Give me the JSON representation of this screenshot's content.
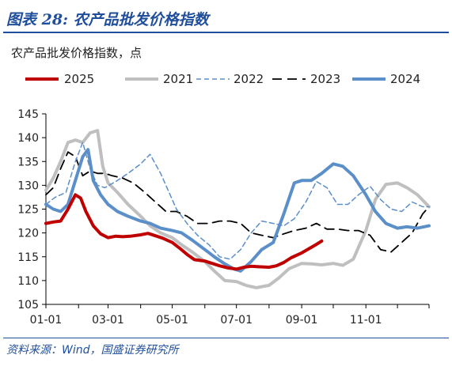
{
  "figure": {
    "title": "图表 28:  农产品批发价格指数",
    "subtitle": "农产品批发价格指数，点",
    "source": "资料来源：Wind，国盛证券研究所"
  },
  "colors": {
    "brand": "#1f4e9c"
  },
  "chart_data": {
    "type": "line",
    "title": "农产品批发价格指数，点",
    "xlabel": "",
    "ylabel": "",
    "ylim": [
      105,
      145
    ],
    "xlim": [
      "01-01",
      "12-31"
    ],
    "x_ticks": [
      "01-01",
      "03-01",
      "05-01",
      "07-01",
      "09-01",
      "11-01"
    ],
    "y_ticks": [
      105,
      110,
      115,
      120,
      125,
      130,
      135,
      140,
      145
    ],
    "grid": false,
    "legend_position": "top",
    "series": [
      {
        "name": "2025",
        "color": "#c00000",
        "style": "solid",
        "width": 4,
        "x": [
          "01-01",
          "01-08",
          "01-15",
          "01-22",
          "01-29",
          "02-03",
          "02-08",
          "02-15",
          "02-22",
          "03-01",
          "03-08",
          "03-15",
          "03-22",
          "04-01",
          "04-08",
          "04-15",
          "04-22",
          "05-01",
          "05-08",
          "05-15",
          "05-22",
          "06-01",
          "06-08",
          "06-15",
          "06-22",
          "07-01",
          "07-08",
          "07-15",
          "07-22",
          "08-01",
          "08-08",
          "08-15",
          "08-22",
          "09-01",
          "09-08",
          "09-15",
          "09-20"
        ],
        "y": [
          122.0,
          122.3,
          122.5,
          125.0,
          128.0,
          127.3,
          124.5,
          121.5,
          119.8,
          119.0,
          119.3,
          119.2,
          119.3,
          119.6,
          119.9,
          119.4,
          118.9,
          118.0,
          116.8,
          115.5,
          114.4,
          114.1,
          113.6,
          113.1,
          112.7,
          112.4,
          112.8,
          113.0,
          112.9,
          112.8,
          113.1,
          113.8,
          114.8,
          115.8,
          116.7,
          117.6,
          118.3
        ]
      },
      {
        "name": "2021",
        "color": "#bfbfbf",
        "style": "solid",
        "width": 4,
        "x": [
          "01-01",
          "01-08",
          "01-15",
          "01-22",
          "01-29",
          "02-05",
          "02-12",
          "02-19",
          "02-24",
          "03-01",
          "03-10",
          "03-20",
          "04-01",
          "04-10",
          "04-20",
          "05-01",
          "05-10",
          "05-20",
          "06-01",
          "06-10",
          "06-20",
          "07-01",
          "07-10",
          "07-20",
          "08-01",
          "08-10",
          "08-20",
          "09-01",
          "09-10",
          "09-20",
          "10-01",
          "10-10",
          "10-20",
          "11-01",
          "11-10",
          "11-20",
          "12-01",
          "12-10",
          "12-20",
          "12-31"
        ],
        "y": [
          129.0,
          131.5,
          135.0,
          139.0,
          139.5,
          139.0,
          141.0,
          141.5,
          134.0,
          130.5,
          128.5,
          126.0,
          123.5,
          121.5,
          120.0,
          119.0,
          117.5,
          116.0,
          114.0,
          112.0,
          110.0,
          109.8,
          109.0,
          108.5,
          109.0,
          110.5,
          112.5,
          113.6,
          113.5,
          113.3,
          113.6,
          113.2,
          114.5,
          120.5,
          127.0,
          130.2,
          130.5,
          129.5,
          128.0,
          125.5
        ]
      },
      {
        "name": "2022",
        "color": "#5b8fc9",
        "style": "dashed",
        "width": 1.5,
        "x": [
          "01-01",
          "01-10",
          "01-20",
          "01-29",
          "02-05",
          "02-12",
          "02-19",
          "02-26",
          "03-10",
          "03-20",
          "04-01",
          "04-10",
          "04-20",
          "04-28",
          "05-05",
          "05-15",
          "05-25",
          "06-05",
          "06-15",
          "06-25",
          "07-05",
          "07-15",
          "07-25",
          "08-05",
          "08-15",
          "08-25",
          "09-05",
          "09-15",
          "09-25",
          "10-05",
          "10-15",
          "10-25",
          "11-05",
          "11-15",
          "11-25",
          "12-05",
          "12-15",
          "12-25",
          "12-31"
        ],
        "y": [
          126.0,
          127.5,
          128.5,
          135.0,
          139.0,
          133.5,
          130.0,
          129.5,
          131.0,
          132.5,
          134.5,
          136.5,
          132.5,
          128.5,
          125.0,
          122.0,
          119.5,
          117.5,
          115.0,
          114.5,
          116.5,
          120.0,
          122.5,
          122.0,
          121.5,
          123.0,
          126.5,
          130.8,
          129.5,
          126.0,
          126.0,
          128.0,
          129.8,
          127.0,
          125.0,
          124.5,
          126.5,
          125.5,
          125.5
        ]
      },
      {
        "name": "2023",
        "color": "#000000",
        "style": "dashed",
        "width": 1.8,
        "x": [
          "01-01",
          "01-08",
          "01-15",
          "01-22",
          "01-29",
          "02-05",
          "02-12",
          "02-19",
          "02-26",
          "03-05",
          "03-15",
          "03-25",
          "04-05",
          "04-15",
          "04-25",
          "05-05",
          "05-15",
          "05-25",
          "06-05",
          "06-15",
          "06-25",
          "07-05",
          "07-15",
          "07-25",
          "08-05",
          "08-15",
          "08-25",
          "09-05",
          "09-15",
          "09-25",
          "10-05",
          "10-15",
          "10-25",
          "11-05",
          "11-15",
          "11-25",
          "12-05",
          "12-15",
          "12-25",
          "12-31"
        ],
        "y": [
          128.0,
          129.5,
          133.5,
          137.0,
          136.0,
          132.0,
          133.0,
          132.5,
          132.5,
          132.0,
          131.5,
          130.5,
          128.5,
          126.5,
          124.5,
          124.5,
          123.5,
          122.0,
          122.0,
          122.5,
          122.5,
          122.0,
          120.0,
          119.5,
          119.0,
          119.8,
          120.5,
          121.0,
          122.0,
          120.8,
          120.8,
          120.5,
          120.5,
          119.5,
          116.5,
          116.0,
          118.0,
          120.0,
          124.0,
          125.5
        ]
      },
      {
        "name": "2024",
        "color": "#5b8fc9",
        "style": "solid",
        "width": 4,
        "x": [
          "01-01",
          "01-08",
          "01-15",
          "01-22",
          "01-29",
          "02-05",
          "02-10",
          "02-15",
          "02-22",
          "03-01",
          "03-10",
          "03-20",
          "04-01",
          "04-10",
          "04-20",
          "05-01",
          "05-10",
          "05-20",
          "06-01",
          "06-10",
          "06-20",
          "06-28",
          "07-05",
          "07-15",
          "07-25",
          "08-05",
          "08-15",
          "08-25",
          "09-01",
          "09-10",
          "09-20",
          "10-01",
          "10-10",
          "10-20",
          "11-01",
          "11-10",
          "11-20",
          "12-01",
          "12-10",
          "12-20",
          "12-31"
        ],
        "y": [
          126.0,
          125.0,
          124.5,
          126.0,
          131.0,
          136.0,
          137.5,
          131.0,
          128.0,
          126.0,
          124.5,
          123.5,
          122.5,
          122.0,
          121.0,
          120.5,
          120.0,
          118.5,
          116.5,
          115.0,
          113.5,
          112.5,
          112.0,
          114.0,
          116.5,
          118.0,
          124.0,
          130.5,
          131.0,
          131.0,
          132.5,
          134.5,
          134.0,
          132.0,
          128.0,
          124.5,
          122.0,
          121.0,
          121.3,
          121.0,
          121.5
        ]
      }
    ]
  }
}
